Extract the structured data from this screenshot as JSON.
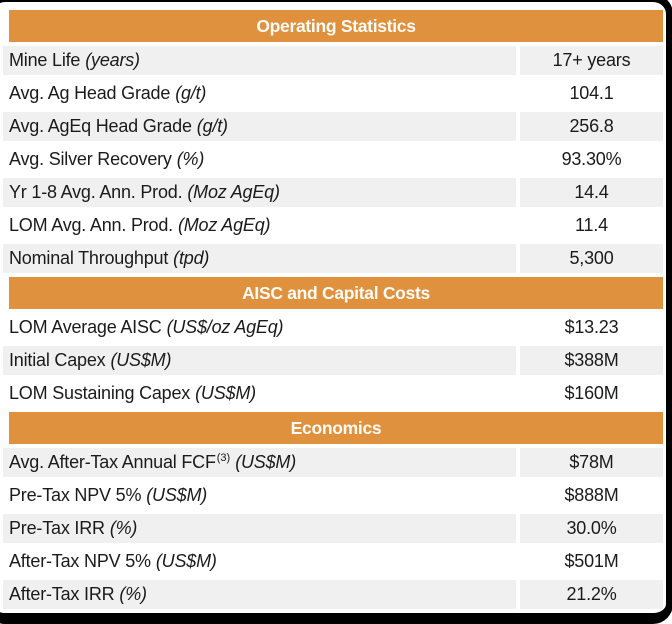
{
  "table": {
    "sections": [
      {
        "header": "Operating Statistics",
        "rows": [
          {
            "label": "Mine Life",
            "unit": "(years)",
            "value": "17+ years"
          },
          {
            "label": "Avg. Ag Head Grade",
            "unit": "(g/t)",
            "value": "104.1"
          },
          {
            "label": "Avg. AgEq Head Grade",
            "unit": "(g/t)",
            "value": "256.8"
          },
          {
            "label": "Avg. Silver Recovery",
            "unit": "(%)",
            "value": "93.30%"
          },
          {
            "label": "Yr 1-8 Avg. Ann. Prod.",
            "unit": "(Moz AgEq)",
            "value": "14.4"
          },
          {
            "label": "LOM Avg. Ann. Prod.",
            "unit": "(Moz AgEq)",
            "value": "11.4"
          },
          {
            "label": "Nominal Throughput",
            "unit": "(tpd)",
            "value": "5,300"
          }
        ]
      },
      {
        "header": "AISC and Capital Costs",
        "rows": [
          {
            "label": "LOM Average AISC",
            "unit": "(US$/oz AgEq)",
            "value": "$13.23"
          },
          {
            "label": "Initial Capex",
            "unit": "(US$M)",
            "value": "$388M"
          },
          {
            "label": "LOM Sustaining Capex",
            "unit": "(US$M)",
            "value": "$160M"
          }
        ]
      },
      {
        "header": "Economics",
        "rows": [
          {
            "label": "Avg. After-Tax Annual FCF",
            "superscript": "(3)",
            "unit": "(US$M)",
            "value": "$78M"
          },
          {
            "label": "Pre-Tax NPV 5%",
            "unit": "(US$M)",
            "value": "$888M"
          },
          {
            "label": "Pre-Tax IRR",
            "unit": "(%)",
            "value": "30.0%"
          },
          {
            "label": "After-Tax NPV 5%",
            "unit": "(US$M)",
            "value": "$501M"
          },
          {
            "label": "After-Tax IRR",
            "unit": "(%)",
            "value": "21.2%"
          }
        ]
      }
    ]
  },
  "colors": {
    "header_bg": "#E0913E",
    "header_text": "#FDFCF8",
    "row_shaded_bg": "#F0F0F0",
    "row_text": "#1B1B1B",
    "frame": "#000000"
  }
}
